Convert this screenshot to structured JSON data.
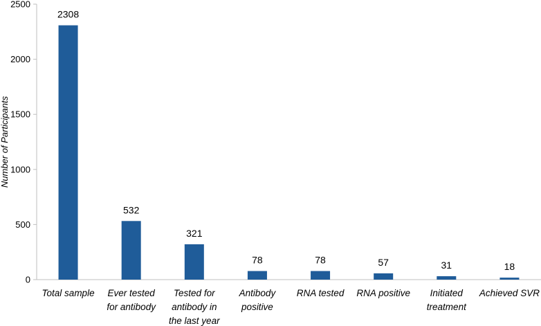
{
  "chart_data": {
    "type": "bar",
    "title": "",
    "xlabel": "",
    "ylabel": "Number of Participants",
    "ylim": [
      0,
      2500
    ],
    "yticks": [
      0,
      500,
      1000,
      1500,
      2000,
      2500
    ],
    "categories": [
      "Total sample",
      "Ever tested for antibody",
      "Tested for antibody in the last year",
      "Antibody positive",
      "RNA tested",
      "RNA positive",
      "Initiated treatment",
      "Achieved SVR"
    ],
    "category_lines": [
      [
        "Total sample"
      ],
      [
        "Ever tested",
        "for antibody"
      ],
      [
        "Tested for",
        "antibody in",
        "the last year"
      ],
      [
        "Antibody",
        "positive"
      ],
      [
        "RNA tested"
      ],
      [
        "RNA positive"
      ],
      [
        "Initiated",
        "treatment"
      ],
      [
        "Achieved SVR"
      ]
    ],
    "values": [
      2308,
      532,
      321,
      78,
      78,
      57,
      31,
      18
    ],
    "data_labels": [
      "2308",
      "532",
      "321",
      "78",
      "78",
      "57",
      "31",
      "18"
    ],
    "bar_color": "#1f5c99",
    "grid": false
  }
}
